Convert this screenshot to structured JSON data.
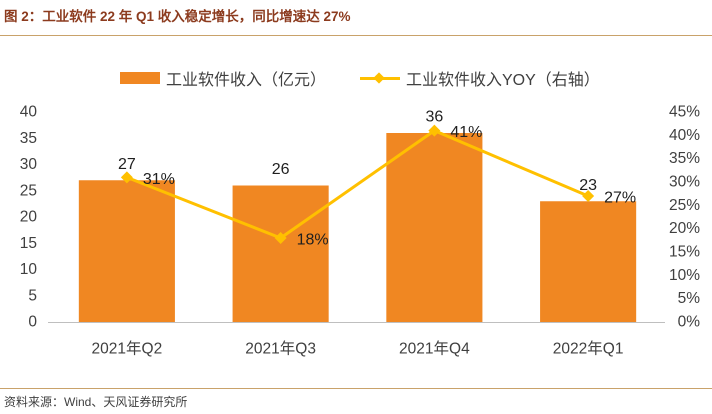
{
  "source": "资料来源：Wind、天风证券研究所",
  "colors": {
    "title": "#8c3b1e",
    "rule": "#c9a26a",
    "bar": "#f08722",
    "line": "#ffc000",
    "axis_text": "#404040",
    "axis_line": "#bfbfbf"
  },
  "chart_data": {
    "type": "bar",
    "title": "图 2：工业软件 22 年 Q1 收入稳定增长，同比增速达 27%",
    "categories": [
      "2021年Q2",
      "2021年Q3",
      "2021年Q4",
      "2022年Q1"
    ],
    "series": [
      {
        "name": "工业软件收入（亿元）",
        "type": "bar",
        "axis": "left",
        "values": [
          27,
          26,
          36,
          23
        ],
        "labels": [
          "27",
          "26",
          "36",
          "23"
        ]
      },
      {
        "name": "工业软件收入YOY（右轴）",
        "type": "line",
        "axis": "right",
        "marker": "diamond",
        "values": [
          31,
          18,
          41,
          27
        ],
        "labels": [
          "31%",
          "18%",
          "41%",
          "27%"
        ]
      }
    ],
    "y_axis": {
      "range": [
        0,
        40
      ],
      "ticks": [
        "0",
        "5",
        "10",
        "15",
        "20",
        "25",
        "30",
        "35",
        "40"
      ]
    },
    "y2_axis": {
      "range": [
        0,
        45
      ],
      "ticks": [
        "0%",
        "5%",
        "10%",
        "15%",
        "20%",
        "25%",
        "30%",
        "35%",
        "40%",
        "45%"
      ]
    },
    "grid": false,
    "legend": "top-center"
  }
}
